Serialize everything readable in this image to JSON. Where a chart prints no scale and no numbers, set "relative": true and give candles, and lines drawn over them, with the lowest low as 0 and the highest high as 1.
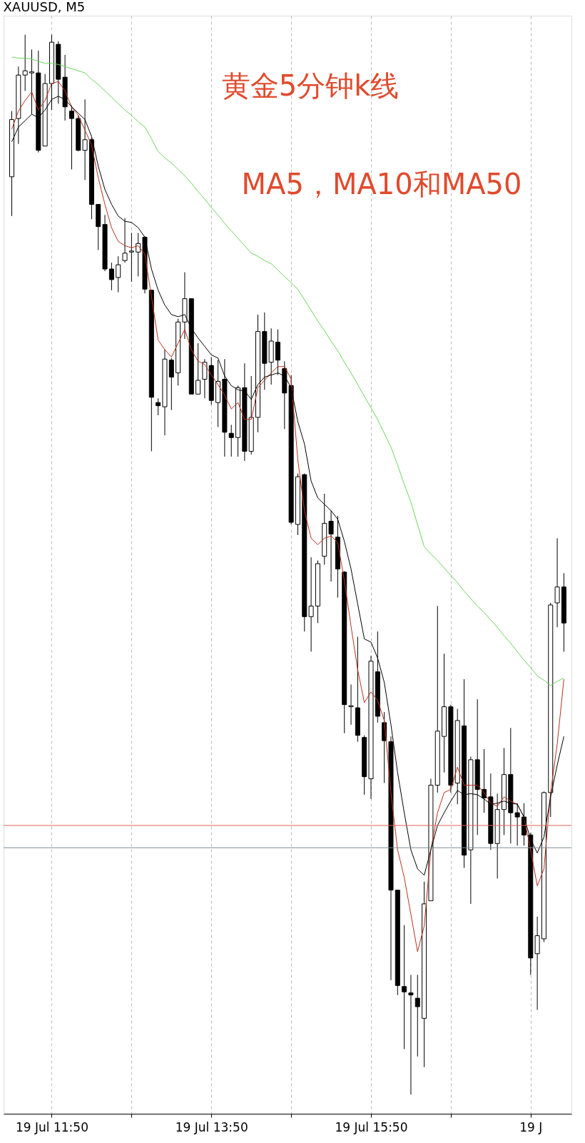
{
  "chart_data": {
    "type": "candlestick",
    "title": "XAUUSD, M5",
    "relative": true,
    "grid": "x",
    "annotations": [
      "黄金5分钟k线",
      "MA5，MA10和MA50"
    ],
    "categories": [
      null,
      null,
      null,
      null,
      null,
      null,
      "19 Jul 11:50",
      null,
      null,
      null,
      null,
      null,
      null,
      null,
      null,
      null,
      null,
      null,
      null,
      null,
      null,
      null,
      null,
      null,
      null,
      null,
      null,
      null,
      null,
      null,
      "19 Jul 13:50",
      null,
      null,
      null,
      null,
      null,
      null,
      null,
      null,
      null,
      null,
      null,
      null,
      null,
      null,
      null,
      null,
      null,
      null,
      null,
      null,
      null,
      null,
      null,
      "19 Jul 15:50",
      null,
      null,
      null,
      null,
      null,
      null,
      null,
      null,
      null,
      null,
      null,
      null,
      null,
      null,
      null,
      null,
      null,
      null,
      null,
      null,
      null,
      null,
      null,
      "19 J",
      null,
      null,
      null,
      null,
      null
    ],
    "ohlc": [
      [
        0.866,
        0.928,
        0.829,
        0.92
      ],
      [
        0.921,
        0.97,
        0.897,
        0.962
      ],
      [
        0.962,
        1.0,
        0.947,
        0.966
      ],
      [
        0.964,
        0.986,
        0.925,
        0.965
      ],
      [
        0.964,
        0.985,
        0.889,
        0.891
      ],
      [
        0.895,
        0.963,
        0.895,
        0.954
      ],
      [
        0.954,
        1.0,
        0.929,
        0.993
      ],
      [
        0.991,
        0.994,
        0.935,
        0.958
      ],
      [
        0.96,
        0.981,
        0.919,
        0.932
      ],
      [
        0.928,
        0.933,
        0.873,
        0.921
      ],
      [
        0.921,
        0.924,
        0.89,
        0.891
      ],
      [
        0.891,
        0.939,
        0.863,
        0.901
      ],
      [
        0.901,
        0.903,
        0.826,
        0.84
      ],
      [
        0.84,
        0.84,
        0.797,
        0.819
      ],
      [
        0.821,
        0.83,
        0.777,
        0.779
      ],
      [
        0.779,
        0.785,
        0.759,
        0.769
      ],
      [
        0.771,
        0.791,
        0.757,
        0.783
      ],
      [
        0.787,
        0.827,
        0.785,
        0.794
      ],
      [
        0.795,
        0.813,
        0.767,
        0.796
      ],
      [
        0.795,
        0.813,
        0.772,
        0.803
      ],
      [
        0.809,
        0.81,
        0.756,
        0.76
      ],
      [
        0.759,
        0.759,
        0.607,
        0.658
      ],
      [
        0.653,
        0.657,
        0.641,
        0.65
      ],
      [
        0.649,
        0.703,
        0.622,
        0.694
      ],
      [
        0.693,
        0.695,
        0.646,
        0.677
      ],
      [
        0.681,
        0.732,
        0.669,
        0.729
      ],
      [
        0.729,
        0.776,
        0.713,
        0.751
      ],
      [
        0.751,
        0.751,
        0.661,
        0.661
      ],
      [
        0.661,
        0.709,
        0.661,
        0.674
      ],
      [
        0.675,
        0.694,
        0.657,
        0.691
      ],
      [
        0.688,
        0.696,
        0.651,
        0.655
      ],
      [
        0.653,
        0.693,
        0.63,
        0.673
      ],
      [
        0.675,
        0.694,
        0.602,
        0.625
      ],
      [
        0.624,
        0.632,
        0.602,
        0.62
      ],
      [
        0.62,
        0.669,
        0.602,
        0.667
      ],
      [
        0.667,
        0.69,
        0.598,
        0.607
      ],
      [
        0.607,
        0.678,
        0.604,
        0.639
      ],
      [
        0.639,
        0.736,
        0.625,
        0.72
      ],
      [
        0.72,
        0.738,
        0.665,
        0.69
      ],
      [
        0.691,
        0.723,
        0.67,
        0.711
      ],
      [
        0.71,
        0.722,
        0.679,
        0.693
      ],
      [
        0.685,
        0.692,
        0.628,
        0.662
      ],
      [
        0.669,
        0.679,
        0.538,
        0.54
      ],
      [
        0.538,
        0.586,
        0.528,
        0.583
      ],
      [
        0.585,
        0.586,
        0.437,
        0.451
      ],
      [
        0.451,
        0.507,
        0.418,
        0.461
      ],
      [
        0.461,
        0.504,
        0.445,
        0.501
      ],
      [
        0.508,
        0.567,
        0.5,
        0.539
      ],
      [
        0.541,
        0.551,
        0.484,
        0.529
      ],
      [
        0.526,
        0.546,
        0.469,
        0.496
      ],
      [
        0.493,
        0.494,
        0.341,
        0.368
      ],
      [
        0.366,
        0.387,
        0.349,
        0.367
      ],
      [
        0.365,
        0.432,
        0.333,
        0.339
      ],
      [
        0.337,
        0.339,
        0.283,
        0.3
      ],
      [
        0.298,
        0.414,
        0.279,
        0.409
      ],
      [
        0.399,
        0.437,
        0.351,
        0.357
      ],
      [
        0.351,
        0.361,
        0.294,
        0.334
      ],
      [
        0.333,
        0.338,
        0.108,
        0.193
      ],
      [
        0.193,
        0.193,
        0.094,
        0.103
      ],
      [
        0.102,
        0.16,
        0.043,
        0.097
      ],
      [
        0.096,
        0.113,
        0,
        0.094
      ],
      [
        0.091,
        0.113,
        0.036,
        0.083
      ],
      [
        0.072,
        0.201,
        0.026,
        0.18
      ],
      [
        0.183,
        0.298,
        0.183,
        0.292
      ],
      [
        0.292,
        0.461,
        0.285,
        0.343
      ],
      [
        0.338,
        0.416,
        0.304,
        0.366
      ],
      [
        0.366,
        0.368,
        0.285,
        0.292
      ],
      [
        0.294,
        0.364,
        0.274,
        0.353
      ],
      [
        0.348,
        0.392,
        0.214,
        0.226
      ],
      [
        0.231,
        0.319,
        0.18,
        0.316
      ],
      [
        0.316,
        0.373,
        0.245,
        0.288
      ],
      [
        0.288,
        0.326,
        0.266,
        0.28
      ],
      [
        0.281,
        0.303,
        0.231,
        0.237
      ],
      [
        0.237,
        0.284,
        0.204,
        0.269
      ],
      [
        0.269,
        0.327,
        0.245,
        0.302
      ],
      [
        0.302,
        0.346,
        0.237,
        0.266
      ],
      [
        0.266,
        0.275,
        0.235,
        0.262
      ],
      [
        0.262,
        0.275,
        0.235,
        0.245
      ],
      [
        0.245,
        0.247,
        0.113,
        0.129
      ],
      [
        0.133,
        0.168,
        0.08,
        0.15
      ],
      [
        0.147,
        0.286,
        0.144,
        0.285
      ],
      [
        0.285,
        0.464,
        0.262,
        0.462
      ],
      [
        0.464,
        0.525,
        0.441,
        0.479
      ],
      [
        0.479,
        0.492,
        0.418,
        0.445
      ]
    ],
    "series": [
      {
        "type": "line",
        "color": "#b8321f",
        "values": [
          0.911,
          0.928,
          0.938,
          0.946,
          0.929,
          0.938,
          0.954,
          0.956,
          0.947,
          0.932,
          0.924,
          0.91,
          0.896,
          0.865,
          0.84,
          0.818,
          0.805,
          0.801,
          0.799,
          0.801,
          0.793,
          0.753,
          0.712,
          0.703,
          0.696,
          0.709,
          0.722,
          0.703,
          0.692,
          0.689,
          0.679,
          0.67,
          0.66,
          0.647,
          0.653,
          0.637,
          0.637,
          0.667,
          0.674,
          0.681,
          0.687,
          0.687,
          0.675,
          0.599,
          0.551,
          0.525,
          0.519,
          0.525,
          0.527,
          0.521,
          0.485,
          0.442,
          0.401,
          0.37,
          0.38,
          0.372,
          0.353,
          0.285,
          0.231,
          0.205,
          0.17,
          0.135,
          0.159,
          0.231,
          0.266,
          0.285,
          0.288,
          0.309,
          0.292,
          0.292,
          0.292,
          0.285,
          0.275,
          0.272,
          0.281,
          0.277,
          0.274,
          0.262,
          0.231,
          0.197,
          0.213,
          0.285,
          0.331,
          0.392
        ]
      },
      {
        "type": "line",
        "color": "#000000",
        "values": [
          0.899,
          0.913,
          0.919,
          0.925,
          0.922,
          0.929,
          0.939,
          0.942,
          0.939,
          0.932,
          0.926,
          0.92,
          0.904,
          0.876,
          0.854,
          0.84,
          0.829,
          0.824,
          0.823,
          0.818,
          0.809,
          0.779,
          0.759,
          0.745,
          0.736,
          0.734,
          0.736,
          0.723,
          0.714,
          0.706,
          0.698,
          0.695,
          0.678,
          0.669,
          0.665,
          0.664,
          0.656,
          0.67,
          0.677,
          0.679,
          0.681,
          0.678,
          0.667,
          0.635,
          0.614,
          0.579,
          0.563,
          0.557,
          0.551,
          0.543,
          0.522,
          0.496,
          0.463,
          0.43,
          0.427,
          0.412,
          0.389,
          0.349,
          0.304,
          0.266,
          0.231,
          0.213,
          0.207,
          0.231,
          0.254,
          0.266,
          0.277,
          0.287,
          0.283,
          0.284,
          0.283,
          0.279,
          0.274,
          0.275,
          0.277,
          0.275,
          0.274,
          0.262,
          0.241,
          0.228,
          0.243,
          0.281,
          0.311,
          0.338
        ]
      },
      {
        "type": "line",
        "color": "#6fd35f",
        "values": [
          0.979,
          0.978,
          0.978,
          0.977,
          0.975,
          0.973,
          0.973,
          0.972,
          0.97,
          0.968,
          0.966,
          0.964,
          0.958,
          0.953,
          0.947,
          0.941,
          0.935,
          0.929,
          0.924,
          0.918,
          0.913,
          0.902,
          0.89,
          0.884,
          0.879,
          0.873,
          0.867,
          0.86,
          0.852,
          0.845,
          0.837,
          0.83,
          0.822,
          0.815,
          0.808,
          0.801,
          0.794,
          0.791,
          0.787,
          0.784,
          0.778,
          0.772,
          0.766,
          0.76,
          0.75,
          0.74,
          0.73,
          0.721,
          0.711,
          0.702,
          0.691,
          0.681,
          0.67,
          0.659,
          0.648,
          0.637,
          0.624,
          0.611,
          0.594,
          0.576,
          0.559,
          0.538,
          0.517,
          0.51,
          0.504,
          0.497,
          0.49,
          0.483,
          0.475,
          0.468,
          0.461,
          0.455,
          0.448,
          0.441,
          0.433,
          0.426,
          0.418,
          0.41,
          0.403,
          0.395,
          0.391,
          0.386,
          0.39,
          0.393
        ]
      }
    ],
    "ref_lines": [
      {
        "axis": "y",
        "value": 0.254,
        "color": "#e0605a"
      },
      {
        "axis": "y",
        "value": 0.233,
        "color": "#7a8c96"
      }
    ]
  }
}
